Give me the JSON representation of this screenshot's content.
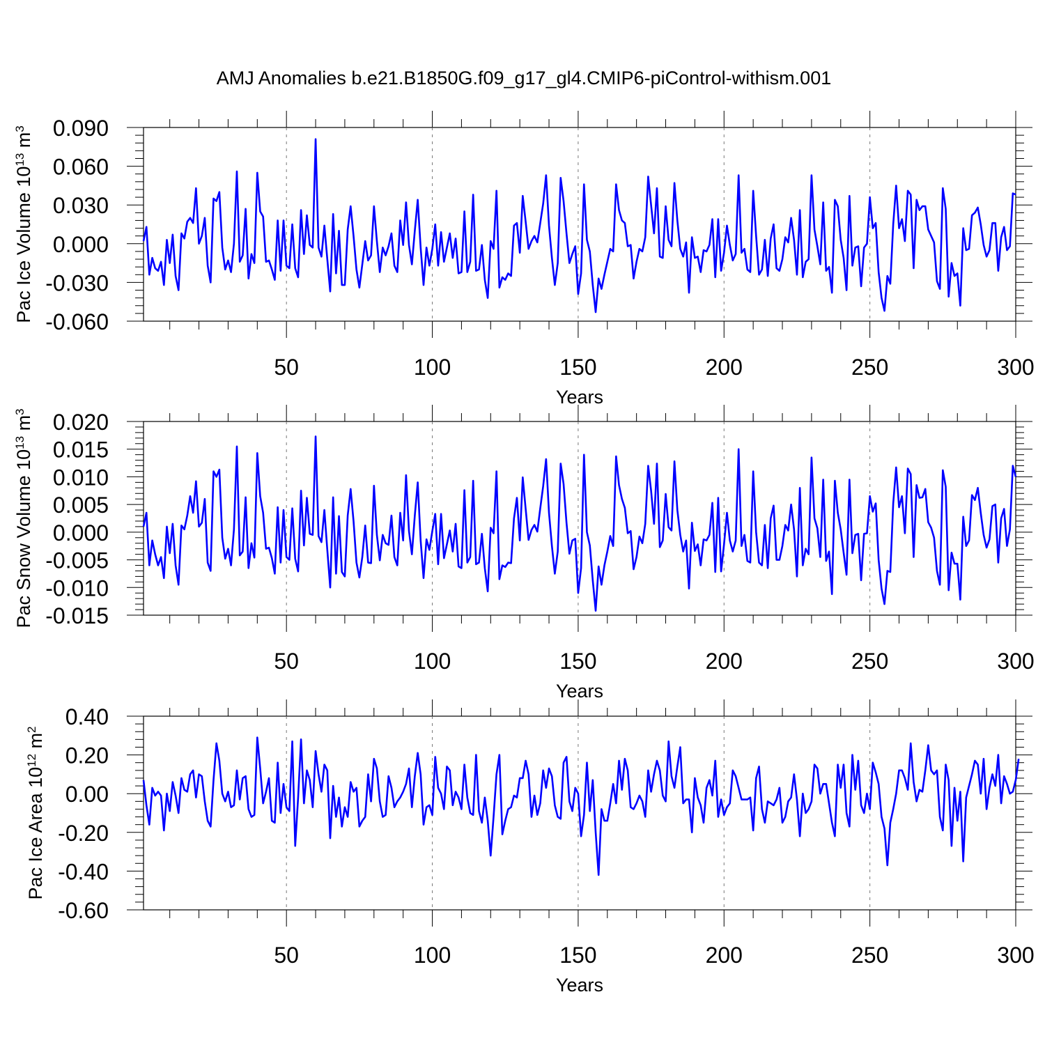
{
  "title": "AMJ Anomalies b.e21.B1850G.f09_g17_gl4.CMIP6-piControl-withism.001",
  "series_color": "#0000ff",
  "chart_data": [
    {
      "type": "line",
      "xlabel": "Years",
      "ylabel": {
        "text": "Pac Ice Volume 10",
        "sup": "13",
        "unit": "m",
        "unit_sup": "3"
      },
      "xlim": [
        1,
        300
      ],
      "ylim": [
        -0.06,
        0.09
      ],
      "xticks": [
        50,
        100,
        150,
        200,
        250,
        300
      ],
      "yticks": [
        -0.06,
        -0.03,
        0.0,
        0.03,
        0.06,
        0.09
      ],
      "ytick_labels": [
        "-0.060",
        "-0.030",
        "0.000",
        "0.030",
        "0.060",
        "0.090"
      ],
      "values": [
        0.002,
        0.013,
        -0.024,
        -0.011,
        -0.019,
        -0.021,
        -0.014,
        -0.032,
        0.003,
        -0.015,
        0.007,
        -0.025,
        -0.036,
        0.008,
        0.004,
        0.017,
        0.02,
        0.016,
        0.043,
        0.0,
        0.006,
        0.02,
        -0.017,
        -0.03,
        0.035,
        0.033,
        0.04,
        -0.003,
        -0.02,
        -0.013,
        -0.022,
        0.0,
        0.056,
        -0.014,
        -0.009,
        0.027,
        -0.027,
        -0.008,
        -0.015,
        0.055,
        0.025,
        0.021,
        -0.014,
        -0.013,
        -0.02,
        -0.028,
        0.018,
        -0.021,
        0.018,
        -0.017,
        -0.019,
        0.015,
        -0.019,
        -0.026,
        0.026,
        -0.008,
        0.022,
        -0.001,
        -0.003,
        0.081,
        -0.003,
        -0.01,
        0.014,
        -0.012,
        -0.037,
        0.023,
        -0.023,
        0.01,
        -0.032,
        -0.032,
        0.011,
        0.029,
        0.006,
        -0.02,
        -0.034,
        -0.016,
        0.002,
        -0.013,
        -0.009,
        0.029,
        0.002,
        -0.022,
        -0.003,
        -0.009,
        -0.002,
        0.008,
        -0.017,
        -0.022,
        0.018,
        -0.001,
        0.032,
        -0.001,
        -0.016,
        0.01,
        0.034,
        -0.003,
        -0.032,
        -0.003,
        -0.017,
        -0.004,
        0.015,
        -0.017,
        0.009,
        -0.014,
        -0.003,
        0.008,
        -0.011,
        0.004,
        -0.023,
        -0.022,
        0.025,
        -0.022,
        -0.014,
        0.038,
        -0.021,
        -0.02,
        -0.001,
        -0.028,
        -0.042,
        0.002,
        -0.004,
        0.041,
        -0.034,
        -0.026,
        -0.028,
        -0.023,
        -0.025,
        0.014,
        0.016,
        -0.007,
        0.037,
        0.017,
        -0.004,
        0.002,
        0.006,
        0.001,
        0.016,
        0.031,
        0.053,
        0.014,
        -0.011,
        -0.032,
        -0.015,
        0.051,
        0.033,
        0.008,
        -0.015,
        -0.008,
        -0.002,
        -0.039,
        -0.023,
        0.046,
        0.003,
        -0.006,
        -0.032,
        -0.053,
        -0.027,
        -0.035,
        -0.024,
        -0.014,
        -0.004,
        -0.006,
        0.046,
        0.026,
        0.018,
        0.016,
        -0.002,
        -0.001,
        -0.027,
        -0.014,
        -0.004,
        -0.006,
        0.005,
        0.052,
        0.03,
        0.008,
        0.043,
        -0.01,
        -0.011,
        0.029,
        0.003,
        -0.002,
        0.047,
        0.018,
        -0.004,
        -0.01,
        0.001,
        -0.038,
        0.005,
        -0.011,
        -0.01,
        -0.022,
        -0.005,
        -0.006,
        -0.001,
        0.019,
        -0.026,
        0.019,
        -0.021,
        -0.007,
        0.014,
        -0.001,
        -0.013,
        -0.008,
        0.053,
        -0.007,
        -0.004,
        -0.02,
        -0.022,
        0.041,
        0.006,
        -0.024,
        -0.02,
        0.003,
        -0.025,
        0.004,
        0.015,
        -0.019,
        -0.021,
        -0.012,
        0.005,
        0.001,
        0.02,
        0.003,
        -0.024,
        0.026,
        -0.026,
        -0.014,
        -0.012,
        0.053,
        0.011,
        -0.002,
        -0.016,
        0.032,
        -0.021,
        -0.018,
        -0.038,
        0.034,
        0.029,
        0.003,
        -0.011,
        -0.036,
        0.037,
        -0.017,
        -0.003,
        -0.002,
        -0.033,
        -0.003,
        0.0,
        0.036,
        0.012,
        0.016,
        -0.022,
        -0.042,
        -0.052,
        -0.025,
        -0.031,
        0.015,
        0.045,
        0.012,
        0.019,
        0.002,
        0.041,
        0.038,
        -0.019,
        0.034,
        0.026,
        0.029,
        0.029,
        0.011,
        0.006,
        0.001,
        -0.029,
        -0.035,
        0.043,
        0.027,
        -0.041,
        -0.015,
        -0.025,
        -0.023,
        -0.048,
        0.012,
        -0.005,
        -0.004,
        0.022,
        0.024,
        0.028,
        0.015,
        -0.001,
        -0.01,
        -0.005,
        0.016,
        0.016,
        -0.021,
        0.005,
        0.013,
        -0.005,
        -0.002,
        0.039,
        0.038
      ]
    },
    {
      "type": "line",
      "xlabel": "Years",
      "ylabel": {
        "text": "Pac Snow Volume 10",
        "sup": "13",
        "unit": "m",
        "unit_sup": "3"
      },
      "xlim": [
        1,
        300
      ],
      "ylim": [
        -0.015,
        0.02
      ],
      "xticks": [
        50,
        100,
        150,
        200,
        250,
        300
      ],
      "yticks": [
        -0.015,
        -0.01,
        -0.005,
        0.0,
        0.005,
        0.01,
        0.015,
        0.02
      ],
      "ytick_labels": [
        "-0.015",
        "-0.010",
        "-0.005",
        "0.000",
        "0.005",
        "0.010",
        "0.015",
        "0.020"
      ],
      "values": [
        0.001,
        0.0035,
        -0.006,
        -0.0015,
        -0.004,
        -0.006,
        -0.0045,
        -0.0083,
        0.001,
        -0.0038,
        0.0015,
        -0.006,
        -0.0095,
        0.0012,
        0.0005,
        0.003,
        0.0065,
        0.0035,
        0.0092,
        0.001,
        0.0017,
        0.006,
        -0.0055,
        -0.007,
        0.011,
        0.01,
        0.0113,
        -0.001,
        -0.0048,
        -0.003,
        -0.006,
        0.0005,
        0.0155,
        -0.0042,
        -0.0035,
        0.0063,
        -0.0065,
        -0.002,
        -0.0046,
        0.0143,
        0.0065,
        0.0035,
        -0.003,
        -0.0028,
        -0.0047,
        -0.0075,
        0.0045,
        -0.0055,
        0.004,
        -0.0045,
        -0.005,
        0.0043,
        -0.0048,
        -0.0071,
        0.0075,
        -0.0024,
        0.0062,
        -0.0003,
        -0.0005,
        0.0173,
        -0.0007,
        -0.0018,
        0.004,
        -0.0032,
        -0.01,
        0.0063,
        -0.0075,
        0.0029,
        -0.0072,
        -0.008,
        0.003,
        0.0078,
        0.002,
        -0.0055,
        -0.0082,
        -0.0045,
        0.0012,
        -0.0055,
        -0.0056,
        0.0084,
        -0.0005,
        -0.0051,
        -0.0005,
        -0.002,
        -0.0023,
        0.003,
        -0.0045,
        -0.006,
        0.0035,
        -0.0015,
        0.0103,
        0.0002,
        -0.004,
        0.003,
        0.009,
        -0.0015,
        -0.0083,
        -0.0013,
        -0.0032,
        0.0002,
        0.0033,
        -0.0058,
        0.0033,
        -0.0047,
        -0.0022,
        0.0003,
        -0.0035,
        0.0015,
        -0.0062,
        -0.0065,
        0.0076,
        -0.0055,
        -0.0045,
        0.0093,
        -0.0058,
        -0.0055,
        -0.0003,
        -0.0065,
        -0.0107,
        0.0008,
        -0.0002,
        0.011,
        -0.0085,
        -0.006,
        -0.0063,
        -0.0055,
        -0.0056,
        0.0025,
        0.0062,
        -0.0015,
        0.0099,
        0.0042,
        -0.0014,
        0.0004,
        0.0013,
        0.0001,
        0.0043,
        0.0083,
        0.0132,
        0.0035,
        -0.0025,
        -0.0075,
        -0.0035,
        0.0124,
        0.0087,
        0.0017,
        -0.0039,
        -0.0015,
        -0.0012,
        -0.011,
        -0.0065,
        0.014,
        0.0,
        -0.0024,
        -0.0087,
        -0.0142,
        -0.0062,
        -0.0095,
        -0.006,
        -0.0035,
        -0.0007,
        -0.0025,
        0.0137,
        0.0085,
        0.006,
        0.0044,
        -0.0002,
        0.0002,
        -0.0067,
        -0.0045,
        -0.0008,
        -0.002,
        0.0015,
        0.012,
        0.0075,
        0.0015,
        0.0124,
        -0.0027,
        -0.0015,
        0.0069,
        0.0009,
        0.0003,
        0.0128,
        0.004,
        -0.0005,
        -0.0035,
        -0.0015,
        -0.0102,
        0.0017,
        -0.0034,
        -0.0022,
        -0.006,
        -0.0013,
        -0.0015,
        -0.0005,
        0.0053,
        -0.0072,
        0.0062,
        -0.0071,
        -0.0022,
        0.0035,
        -0.0015,
        -0.0035,
        -0.0015,
        0.015,
        -0.0025,
        -0.0005,
        -0.0052,
        -0.0055,
        0.011,
        0.0,
        -0.0055,
        -0.006,
        0.0013,
        -0.0065,
        0.0025,
        0.0048,
        -0.005,
        -0.005,
        -0.0025,
        0.0013,
        0.0003,
        0.005,
        0.0005,
        -0.008,
        0.008,
        -0.006,
        -0.003,
        -0.004,
        0.0135,
        0.0025,
        0.0007,
        -0.0045,
        0.0095,
        -0.0052,
        -0.0035,
        -0.0112,
        0.0093,
        0.0035,
        0.0005,
        -0.0037,
        -0.0077,
        0.0095,
        -0.0038,
        -0.0005,
        -0.0003,
        -0.0087,
        -0.0003,
        -0.0002,
        0.0065,
        0.0037,
        0.0052,
        -0.005,
        -0.0102,
        -0.013,
        -0.007,
        -0.0072,
        0.0052,
        0.0117,
        0.0045,
        0.0065,
        -0.0002,
        0.0115,
        0.0105,
        -0.0045,
        0.0085,
        0.0062,
        0.0063,
        0.0078,
        0.0018,
        0.0008,
        -0.001,
        -0.007,
        -0.0095,
        0.0112,
        0.0082,
        -0.0105,
        -0.0037,
        -0.0057,
        -0.0057,
        -0.0122,
        0.0028,
        -0.0025,
        -0.0015,
        0.0067,
        0.0058,
        0.008,
        0.0035,
        -0.0005,
        -0.0028,
        -0.0013,
        0.0047,
        0.005,
        -0.0055,
        0.0025,
        0.0042,
        -0.0025,
        0.0005,
        0.012,
        0.01
      ]
    },
    {
      "type": "line",
      "xlabel": "Years",
      "ylabel": {
        "text": "Pac Ice Area 10",
        "sup": "12",
        "unit": "m",
        "unit_sup": "2"
      },
      "xlim": [
        1,
        300
      ],
      "ylim": [
        -0.6,
        0.4
      ],
      "xticks": [
        50,
        100,
        150,
        200,
        250,
        300
      ],
      "yticks": [
        -0.6,
        -0.4,
        -0.2,
        0.0,
        0.2,
        0.4
      ],
      "ytick_labels": [
        "-0.60",
        "-0.40",
        "-0.20",
        "0.00",
        "0.20",
        "0.40"
      ],
      "values": [
        0.07,
        -0.06,
        -0.16,
        0.03,
        -0.01,
        0.01,
        -0.01,
        -0.19,
        0.0,
        -0.09,
        0.06,
        -0.01,
        -0.1,
        0.08,
        0.02,
        0.01,
        0.1,
        0.12,
        -0.02,
        0.1,
        0.09,
        -0.04,
        -0.14,
        -0.17,
        0.07,
        0.26,
        0.17,
        0.0,
        -0.04,
        0.01,
        -0.07,
        -0.06,
        0.12,
        -0.03,
        0.08,
        0.09,
        -0.08,
        -0.12,
        -0.11,
        0.29,
        0.13,
        -0.05,
        0.01,
        0.08,
        -0.14,
        -0.15,
        0.16,
        -0.1,
        0.05,
        -0.07,
        -0.09,
        0.27,
        -0.27,
        -0.02,
        0.28,
        -0.05,
        0.12,
        0.07,
        -0.07,
        0.22,
        0.1,
        0.01,
        0.15,
        0.12,
        -0.23,
        0.04,
        -0.12,
        -0.02,
        -0.17,
        -0.07,
        -0.12,
        0.06,
        0.01,
        0.03,
        -0.17,
        -0.14,
        -0.12,
        0.1,
        -0.04,
        0.18,
        0.13,
        -0.04,
        -0.12,
        -0.11,
        0.09,
        0.03,
        -0.07,
        -0.04,
        -0.02,
        0.01,
        0.05,
        0.13,
        -0.07,
        0.09,
        0.21,
        0.1,
        -0.16,
        -0.07,
        -0.06,
        -0.11,
        0.19,
        0.03,
        0.0,
        -0.08,
        0.14,
        0.12,
        -0.06,
        0.01,
        -0.02,
        -0.08,
        0.15,
        -0.02,
        -0.1,
        -0.11,
        0.2,
        -0.09,
        -0.15,
        -0.02,
        -0.14,
        -0.32,
        -0.12,
        0.1,
        0.2,
        -0.21,
        -0.14,
        -0.08,
        -0.07,
        -0.01,
        -0.02,
        0.08,
        0.08,
        0.17,
        0.1,
        -0.12,
        -0.01,
        -0.11,
        -0.05,
        0.12,
        0.03,
        0.13,
        0.09,
        -0.06,
        -0.12,
        -0.13,
        0.16,
        0.19,
        -0.04,
        -0.09,
        0.03,
        0.0,
        -0.22,
        -0.11,
        0.16,
        -0.09,
        0.07,
        -0.2,
        -0.42,
        -0.08,
        -0.14,
        -0.14,
        -0.05,
        0.05,
        -0.05,
        0.17,
        0.02,
        0.18,
        0.12,
        -0.07,
        -0.08,
        -0.05,
        -0.01,
        -0.04,
        -0.12,
        0.12,
        0.01,
        0.1,
        0.17,
        0.12,
        -0.01,
        -0.04,
        0.27,
        0.09,
        0.03,
        0.14,
        0.24,
        -0.05,
        -0.03,
        -0.03,
        -0.2,
        0.08,
        -0.02,
        -0.06,
        -0.15,
        0.03,
        0.07,
        -0.01,
        0.17,
        -0.12,
        -0.03,
        -0.11,
        -0.07,
        -0.05,
        0.12,
        0.09,
        0.03,
        -0.03,
        -0.03,
        -0.03,
        -0.02,
        -0.19,
        0.08,
        0.14,
        -0.08,
        -0.15,
        -0.04,
        -0.05,
        -0.06,
        -0.03,
        0.03,
        -0.15,
        -0.12,
        -0.04,
        -0.02,
        0.1,
        -0.03,
        -0.22,
        0.0,
        -0.1,
        -0.08,
        -0.04,
        0.15,
        0.13,
        0.0,
        0.05,
        0.05,
        -0.05,
        -0.15,
        -0.22,
        0.15,
        0.03,
        0.15,
        -0.1,
        -0.17,
        0.2,
        0.02,
        0.17,
        -0.06,
        -0.1,
        0.0,
        -0.08,
        0.16,
        0.11,
        0.05,
        -0.12,
        -0.18,
        -0.37,
        -0.15,
        -0.08,
        0.0,
        0.12,
        0.12,
        0.08,
        0.02,
        0.26,
        0.06,
        -0.04,
        0.02,
        0.01,
        0.12,
        0.25,
        0.12,
        0.1,
        0.12,
        -0.12,
        -0.19,
        0.15,
        0.07,
        -0.27,
        0.03,
        -0.14,
        0.01,
        -0.35,
        -0.02,
        0.04,
        0.1,
        0.17,
        0.15,
        0.0,
        0.18,
        -0.08,
        0.03,
        0.1,
        0.04,
        0.2,
        -0.05,
        0.09,
        0.05,
        0.0,
        0.01,
        0.07,
        0.18
      ]
    }
  ]
}
